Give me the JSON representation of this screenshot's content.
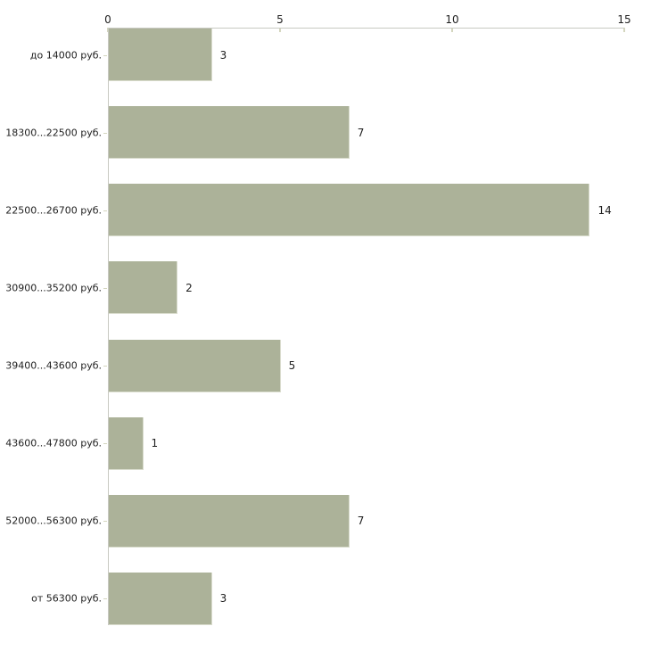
{
  "chart_data": {
    "type": "bar",
    "orientation": "horizontal",
    "title": "",
    "xlabel": "",
    "ylabel": "",
    "categories": [
      "до 14000 руб.",
      "18300...22500 руб.",
      "22500...26700 руб.",
      "30900...35200 руб.",
      "39400...43600 руб.",
      "43600...47800 руб.",
      "52000...56300 руб.",
      "от 56300 руб."
    ],
    "values": [
      3,
      7,
      14,
      2,
      5,
      1,
      7,
      3
    ],
    "xlim": [
      0,
      15
    ],
    "x_ticks": [
      0,
      5,
      10,
      15
    ],
    "x_axis_position": "top",
    "grid": false,
    "legend": "none",
    "value_labels": true,
    "colors": {
      "bar_fill": "#acb299",
      "bar_edge": "#d8dbcc",
      "axis_line": "#c8c9c2",
      "tick_mark": "#d4d6bf",
      "text": "#1f1f1f",
      "background": "#ffffff"
    }
  }
}
